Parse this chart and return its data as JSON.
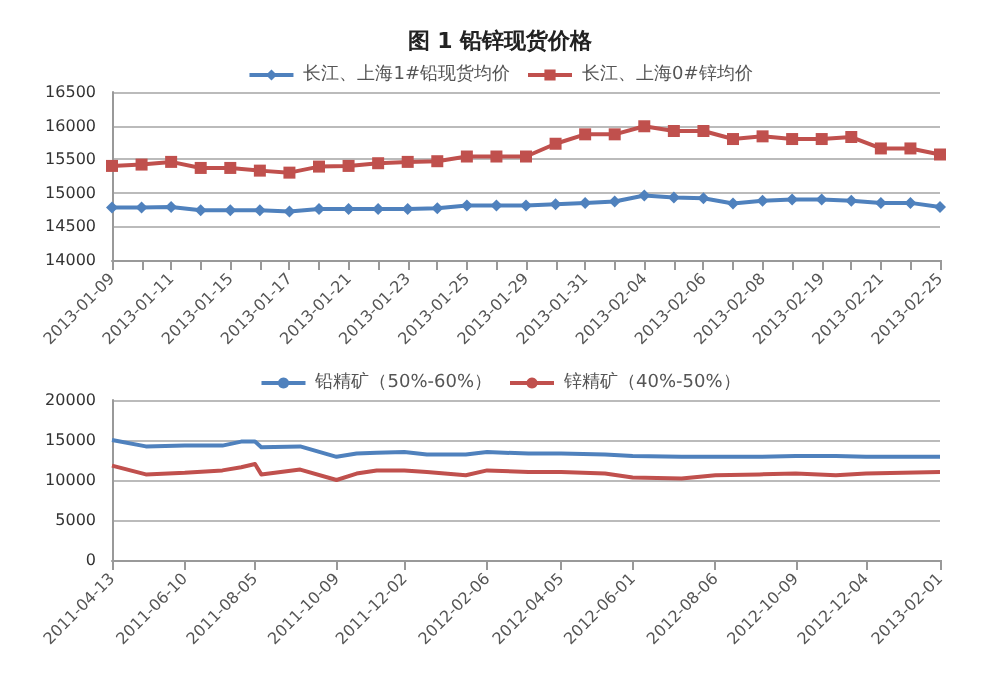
{
  "chart_data": [
    {
      "type": "line",
      "title": "图 1 铅锌现货价格",
      "categories": [
        "2013-01-09",
        null,
        "2013-01-11",
        null,
        "2013-01-15",
        null,
        "2013-01-17",
        null,
        "2013-01-21",
        null,
        "2013-01-23",
        null,
        "2013-01-25",
        null,
        "2013-01-29",
        null,
        "2013-01-31",
        null,
        "2013-02-04",
        null,
        "2013-02-06",
        null,
        "2013-02-08",
        null,
        "2013-02-19",
        null,
        "2013-02-21",
        null,
        "2013-02-25"
      ],
      "series": [
        {
          "name": "长江、上海1#铅现货均价",
          "color": "#4f81bd",
          "marker": "diamond",
          "values": [
            14780,
            14780,
            14790,
            14740,
            14740,
            14740,
            14720,
            14760,
            14760,
            14760,
            14760,
            14770,
            14810,
            14810,
            14810,
            14830,
            14850,
            14870,
            14960,
            14930,
            14920,
            14840,
            14880,
            14900,
            14900,
            14880,
            14850,
            14850,
            14790
          ]
        },
        {
          "name": "长江、上海0#锌均价",
          "color": "#c0504d",
          "marker": "square",
          "values": [
            15400,
            15420,
            15460,
            15370,
            15370,
            15330,
            15300,
            15390,
            15400,
            15440,
            15460,
            15470,
            15540,
            15540,
            15540,
            15730,
            15870,
            15870,
            15990,
            15920,
            15920,
            15800,
            15840,
            15800,
            15800,
            15830,
            15660,
            15660,
            15570
          ]
        }
      ],
      "ylim": [
        14000,
        16500
      ],
      "yticks": [
        14000,
        14500,
        15000,
        15500,
        16000,
        16500
      ],
      "grid": "y",
      "legend": "top"
    },
    {
      "type": "line",
      "xlim": [
        "2011-04-13",
        "2013-02-01"
      ],
      "xticks": [
        "2011-04-13",
        "2011-06-10",
        "2011-08-05",
        "2011-10-09",
        "2011-12-02",
        "2012-02-06",
        "2012-04-05",
        "2012-06-01",
        "2012-08-06",
        "2012-10-09",
        "2012-12-04",
        "2013-02-01"
      ],
      "series": [
        {
          "name": "铅精矿（50%-60%）",
          "color": "#4f81bd",
          "x": [
            "2011-04-13",
            "2011-05-10",
            "2011-06-10",
            "2011-07-10",
            "2011-07-25",
            "2011-08-05",
            "2011-08-10",
            "2011-09-10",
            "2011-10-09",
            "2011-10-25",
            "2011-11-10",
            "2011-12-02",
            "2011-12-20",
            "2012-01-20",
            "2012-02-06",
            "2012-03-10",
            "2012-04-05",
            "2012-05-10",
            "2012-06-01",
            "2012-07-10",
            "2012-08-06",
            "2012-09-10",
            "2012-10-09",
            "2012-11-10",
            "2012-12-04",
            "2013-02-01"
          ],
          "values": [
            15000,
            14200,
            14300,
            14300,
            14800,
            14800,
            14100,
            14200,
            12900,
            13300,
            13400,
            13500,
            13200,
            13200,
            13500,
            13300,
            13300,
            13200,
            13000,
            12900,
            12900,
            12900,
            13000,
            13000,
            12900,
            12900
          ]
        },
        {
          "name": "锌精矿（40%-50%）",
          "color": "#c0504d",
          "x": [
            "2011-04-13",
            "2011-05-10",
            "2011-06-10",
            "2011-07-10",
            "2011-07-25",
            "2011-08-05",
            "2011-08-10",
            "2011-09-10",
            "2011-10-09",
            "2011-10-25",
            "2011-11-10",
            "2011-12-02",
            "2011-12-20",
            "2012-01-20",
            "2012-02-06",
            "2012-03-10",
            "2012-04-05",
            "2012-05-10",
            "2012-06-01",
            "2012-07-10",
            "2012-08-06",
            "2012-09-10",
            "2012-10-09",
            "2012-11-10",
            "2012-12-04",
            "2013-02-01"
          ],
          "values": [
            11800,
            10700,
            10900,
            11200,
            11600,
            12000,
            10700,
            11300,
            10000,
            10800,
            11200,
            11200,
            11000,
            10600,
            11200,
            11000,
            11000,
            10800,
            10300,
            10200,
            10600,
            10700,
            10800,
            10600,
            10800,
            11000
          ]
        }
      ],
      "ylim": [
        0,
        20000
      ],
      "yticks": [
        0,
        5000,
        10000,
        15000,
        20000
      ],
      "grid": "y",
      "legend": "top",
      "marker": "none"
    }
  ]
}
